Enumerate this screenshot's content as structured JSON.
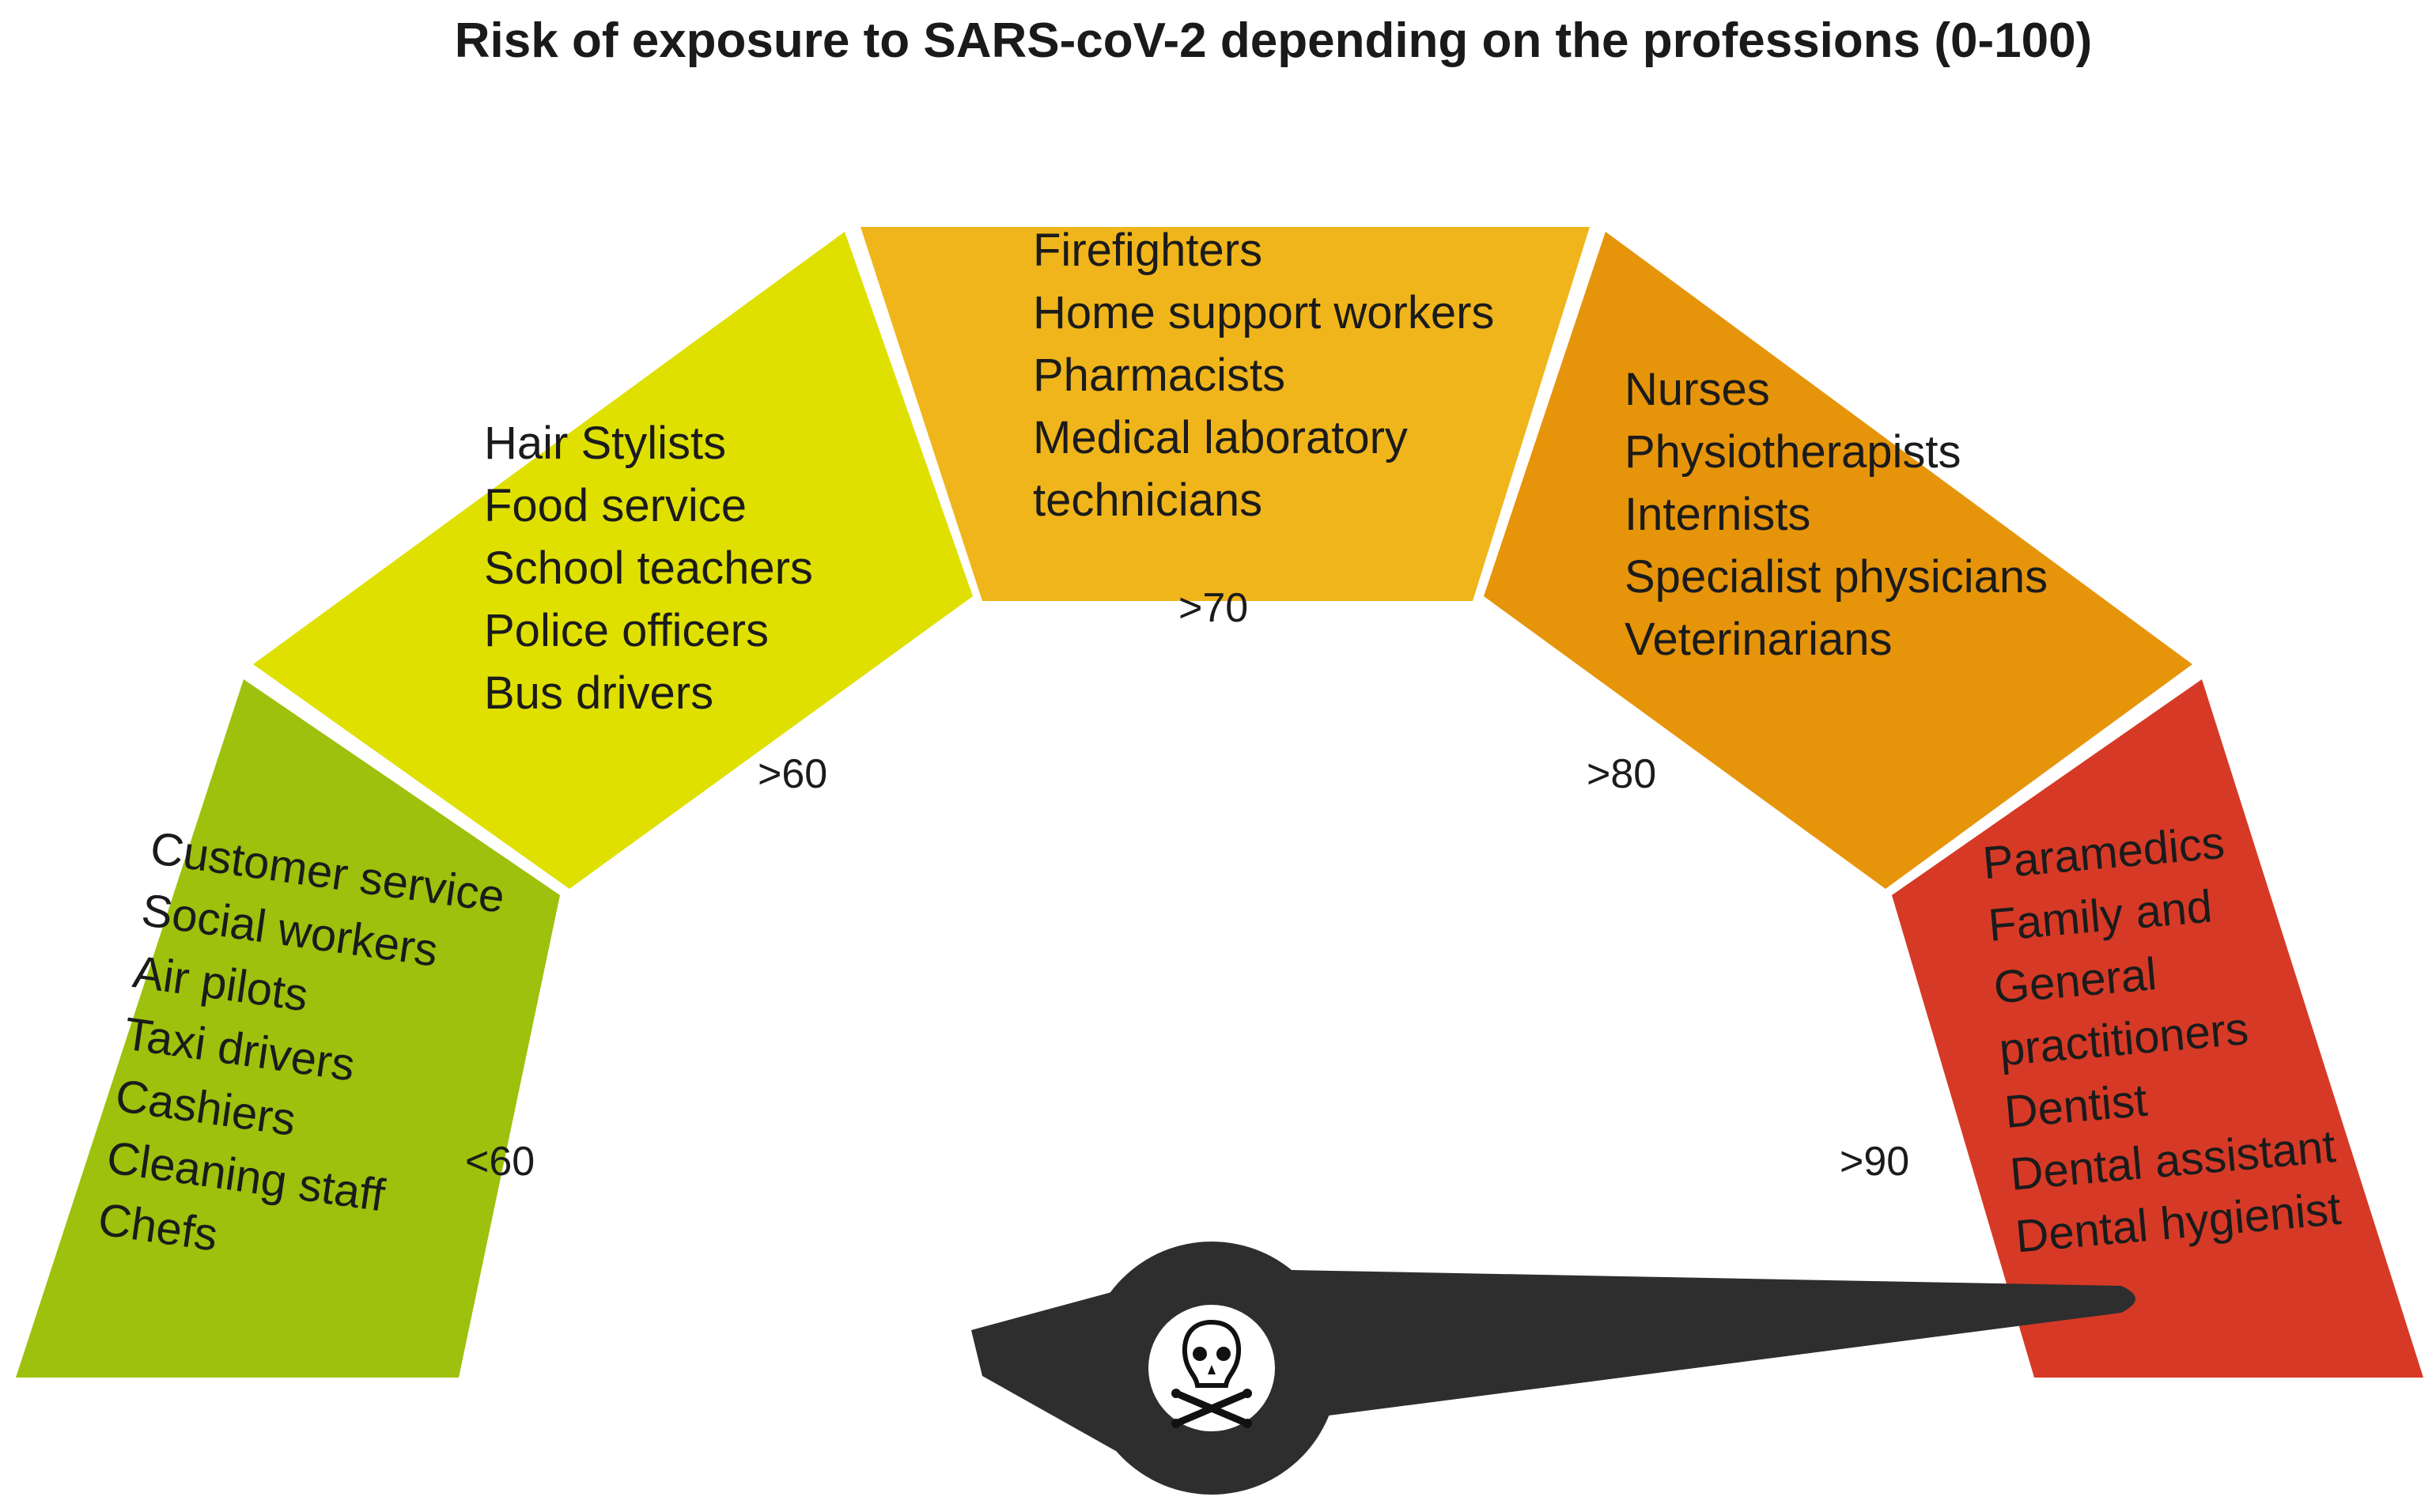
{
  "title": "Risk of exposure to SARS-coV-2 depending on the professions (0-100)",
  "gauge": {
    "segments": [
      {
        "id": "lt60",
        "color": "#9dc10c",
        "threshold": "<60",
        "professions": [
          "Customer service",
          "Social workers",
          "Air pilots",
          "Taxi drivers",
          "Cashiers",
          "Cleaning staff",
          "Chefs"
        ]
      },
      {
        "id": "gt60",
        "color": "#dfe000",
        "threshold": ">60",
        "professions": [
          "Hair Stylists",
          "Food service",
          "School teachers",
          "Police officers",
          "Bus drivers"
        ]
      },
      {
        "id": "gt70",
        "color": "#efb51b",
        "threshold": ">70",
        "professions": [
          "Firefighters",
          "Home support workers",
          "Pharmacists",
          "Medical laboratory",
          "technicians"
        ]
      },
      {
        "id": "gt80",
        "color": "#e6940a",
        "threshold": ">80",
        "professions": [
          "Nurses",
          "Physiotherapists",
          "Internists",
          "Specialist physicians",
          "Veterinarians"
        ]
      },
      {
        "id": "gt90",
        "color": "#d63a26",
        "threshold": ">90",
        "professions": [
          "Paramedics",
          "Family and",
          "General",
          "practitioners",
          "Dentist",
          "Dental assistant",
          "Dental hygienist"
        ]
      }
    ],
    "needle_icon": "skull-and-crossbones-icon",
    "needle_color": "#2e2e2e",
    "needle_value": 98
  }
}
